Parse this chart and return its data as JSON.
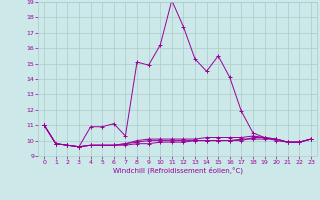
{
  "xlabel": "Windchill (Refroidissement éolien,°C)",
  "x": [
    0,
    1,
    2,
    3,
    4,
    5,
    6,
    7,
    8,
    9,
    10,
    11,
    12,
    13,
    14,
    15,
    16,
    17,
    18,
    19,
    20,
    21,
    22,
    23
  ],
  "line1_y": [
    11,
    9.8,
    9.7,
    9.6,
    10.9,
    10.9,
    11.1,
    10.3,
    15.1,
    14.9,
    16.2,
    19.1,
    17.4,
    15.3,
    14.5,
    15.5,
    14.1,
    11.9,
    10.5,
    10.2,
    10.0,
    9.9,
    9.9,
    10.1
  ],
  "line2_y": [
    11,
    9.8,
    9.7,
    9.6,
    9.7,
    9.7,
    9.7,
    9.7,
    9.8,
    9.8,
    9.9,
    9.9,
    9.9,
    10.0,
    10.0,
    10.0,
    10.0,
    10.1,
    10.1,
    10.1,
    10.1,
    9.9,
    9.9,
    10.1
  ],
  "line3_y": [
    11,
    9.8,
    9.7,
    9.6,
    9.7,
    9.7,
    9.7,
    9.8,
    9.9,
    10.0,
    10.0,
    10.0,
    10.0,
    10.0,
    10.0,
    10.0,
    10.0,
    10.0,
    10.2,
    10.2,
    10.1,
    9.9,
    9.9,
    10.1
  ],
  "line4_y": [
    11,
    9.8,
    9.7,
    9.6,
    9.7,
    9.7,
    9.7,
    9.8,
    10.0,
    10.1,
    10.1,
    10.1,
    10.1,
    10.1,
    10.2,
    10.2,
    10.2,
    10.2,
    10.3,
    10.2,
    10.1,
    9.9,
    9.9,
    10.1
  ],
  "color": "#990099",
  "bg_color": "#cce8e8",
  "grid_color": "#aacccc",
  "ylim": [
    9,
    19
  ],
  "xlim": [
    -0.5,
    23.5
  ],
  "yticks": [
    9,
    10,
    11,
    12,
    13,
    14,
    15,
    16,
    17,
    18,
    19
  ],
  "xticks": [
    0,
    1,
    2,
    3,
    4,
    5,
    6,
    7,
    8,
    9,
    10,
    11,
    12,
    13,
    14,
    15,
    16,
    17,
    18,
    19,
    20,
    21,
    22,
    23
  ]
}
